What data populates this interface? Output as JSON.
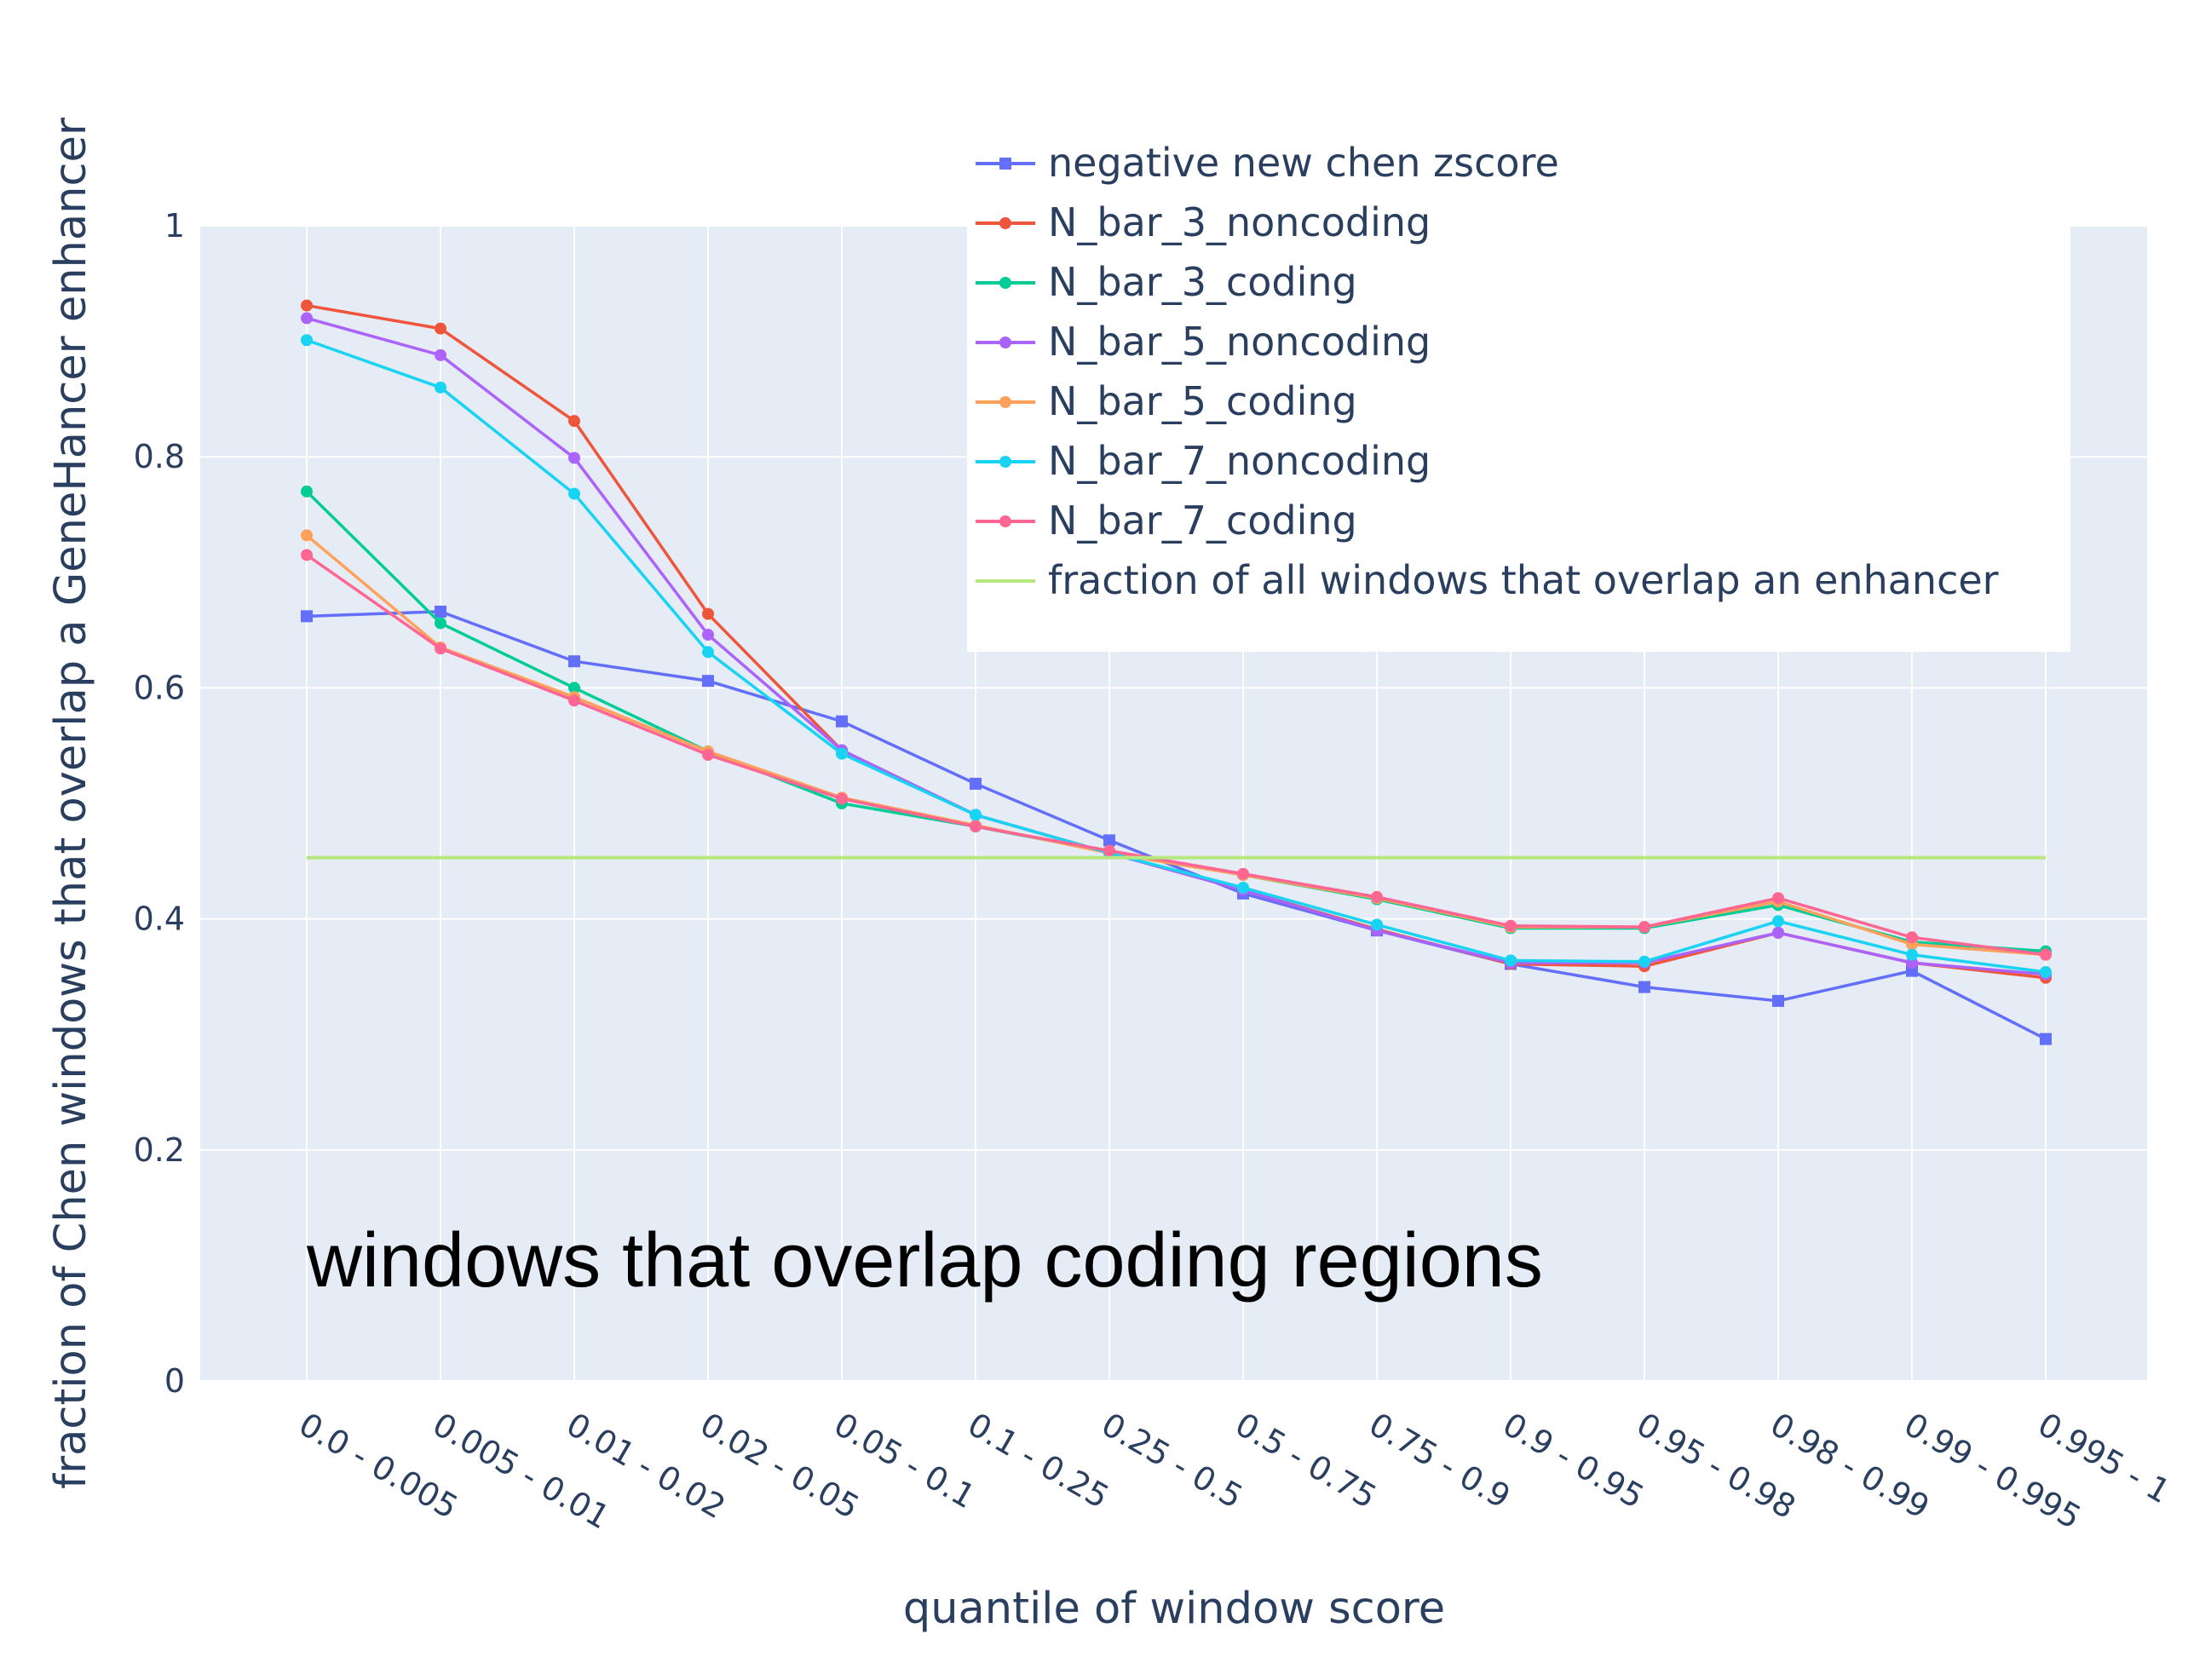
{
  "chart_data": {
    "type": "line",
    "title": "",
    "xlabel": "quantile of window score",
    "ylabel": "fraction of Chen windows that overlap a GeneHancer enhancer",
    "annotation": "windows that overlap coding regions",
    "ylim": [
      0,
      1
    ],
    "yticks": [
      "0",
      "0.2",
      "0.4",
      "0.6",
      "0.8",
      "1"
    ],
    "ytick_values": [
      0,
      0.2,
      0.4,
      0.6,
      0.8,
      1
    ],
    "grid": true,
    "legend_position": "top-right",
    "background_color": "#e5ecf6",
    "categories": [
      "0.0 - 0.005",
      "0.005 - 0.01",
      "0.01 - 0.02",
      "0.02 - 0.05",
      "0.05 - 0.1",
      "0.1 - 0.25",
      "0.25 - 0.5",
      "0.5 - 0.75",
      "0.75 - 0.9",
      "0.9 - 0.95",
      "0.95 - 0.98",
      "0.98 - 0.99",
      "0.99 - 0.995",
      "0.995 - 1"
    ],
    "series": [
      {
        "name": "negative new chen zscore",
        "color": "#636efa",
        "marker": "square",
        "values": [
          0.662,
          0.666,
          0.623,
          0.606,
          0.571,
          0.517,
          0.468,
          0.422,
          0.39,
          0.361,
          0.341,
          0.329,
          0.355,
          0.296
        ]
      },
      {
        "name": "N_bar_3_noncoding",
        "color": "#ef553b",
        "marker": "circle",
        "values": [
          0.931,
          0.911,
          0.831,
          0.664,
          0.546,
          0.49,
          0.457,
          0.425,
          0.391,
          0.361,
          0.359,
          0.388,
          0.362,
          0.349
        ]
      },
      {
        "name": "N_bar_3_coding",
        "color": "#00cc96",
        "marker": "circle",
        "values": [
          0.77,
          0.656,
          0.6,
          0.545,
          0.5,
          0.48,
          0.458,
          0.438,
          0.417,
          0.392,
          0.392,
          0.412,
          0.38,
          0.372
        ]
      },
      {
        "name": "N_bar_5_noncoding",
        "color": "#ab63fa",
        "marker": "circle",
        "values": [
          0.92,
          0.888,
          0.799,
          0.646,
          0.546,
          0.49,
          0.457,
          0.425,
          0.39,
          0.362,
          0.362,
          0.388,
          0.362,
          0.352
        ]
      },
      {
        "name": "N_bar_5_coding",
        "color": "#ffa15a",
        "marker": "circle",
        "values": [
          0.732,
          0.635,
          0.592,
          0.545,
          0.505,
          0.481,
          0.457,
          0.438,
          0.418,
          0.393,
          0.393,
          0.415,
          0.378,
          0.369
        ]
      },
      {
        "name": "N_bar_7_noncoding",
        "color": "#19d3f3",
        "marker": "circle",
        "values": [
          0.901,
          0.86,
          0.768,
          0.631,
          0.543,
          0.49,
          0.457,
          0.427,
          0.395,
          0.364,
          0.363,
          0.398,
          0.369,
          0.354
        ]
      },
      {
        "name": "N_bar_7_coding",
        "color": "#ff6692",
        "marker": "circle",
        "values": [
          0.715,
          0.634,
          0.589,
          0.542,
          0.504,
          0.48,
          0.459,
          0.439,
          0.419,
          0.394,
          0.393,
          0.418,
          0.384,
          0.369
        ]
      },
      {
        "name": "fraction of all windows that overlap an enhancer",
        "color": "#b6e880",
        "marker": "none",
        "values": [
          0.453,
          0.453,
          0.453,
          0.453,
          0.453,
          0.453,
          0.453,
          0.453,
          0.453,
          0.453,
          0.453,
          0.453,
          0.453,
          0.453
        ]
      }
    ]
  }
}
